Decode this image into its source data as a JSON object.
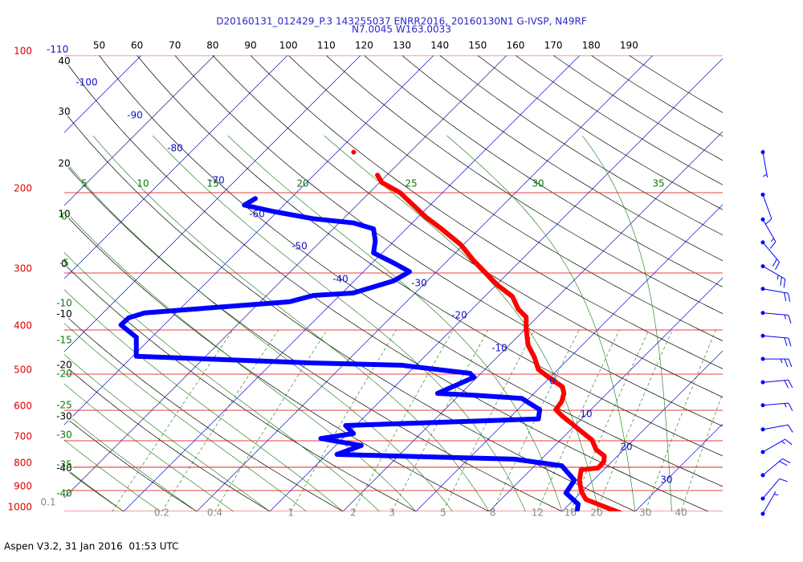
{
  "chart_data": {
    "type": "skewt",
    "title": "D20160131_012429_P.3 143255037 ENRR2016, 20160130N1 G-IVSP, N49RF",
    "subtitle": "N7.0045 W163.0033",
    "footer": "Aspen V3.2, 31 Jan 2016  01:53 UTC",
    "pressure_ticks": [
      100,
      200,
      300,
      400,
      500,
      600,
      700,
      800,
      900,
      1000
    ],
    "isotherms": [
      -110,
      -100,
      -90,
      -80,
      -70,
      -60,
      -50,
      -40,
      -30,
      -20,
      -10,
      0,
      10,
      20,
      30
    ],
    "dry_adiabats": [
      -40,
      -30,
      -20,
      -10,
      0,
      10,
      20,
      30,
      40,
      50,
      60,
      70,
      80,
      90,
      100,
      110,
      120,
      130,
      140,
      150,
      160,
      170,
      180,
      190
    ],
    "moist_adiabats": [
      -40,
      -35,
      -30,
      -25,
      -20,
      -15,
      -10,
      -5,
      0,
      5,
      10,
      15,
      20,
      25,
      30,
      35
    ],
    "mixing_ratios": [
      0.1,
      0.2,
      0.4,
      1,
      2,
      3,
      5,
      8,
      12,
      16,
      20,
      30,
      40
    ],
    "colors": {
      "pressure": "#e00000",
      "isotherm": "#1010c8",
      "dry": "#000000",
      "moist": "#0a7a0a",
      "mixing": "#888888"
    },
    "profiles": [
      {
        "color": "#ff0000",
        "pressure": [
          1016,
          972,
          941,
          904,
          854,
          810,
          803,
          778,
          756,
          732,
          697,
          669,
          642,
          617,
          598,
          574,
          551,
          533,
          508,
          488,
          459,
          432,
          398,
          375,
          360,
          338,
          319,
          300,
          282,
          260,
          240,
          226,
          213,
          200,
          190,
          183
        ],
        "values": [
          29.0,
          24.7,
          21.6,
          19.9,
          18.1,
          16.9,
          19.0,
          18.9,
          18.2,
          16.2,
          14.3,
          11.8,
          9.3,
          6.9,
          5.2,
          4.9,
          4.1,
          3.0,
          -0.2,
          -2.7,
          -4.9,
          -7.4,
          -9.9,
          -11.5,
          -13.7,
          -16.2,
          -19.8,
          -23.1,
          -26.4,
          -30.4,
          -35.2,
          -39.0,
          -42.3,
          -45.8,
          -49.7,
          -51.3
        ]
      },
      {
        "color": "#0000ff",
        "pressure": [
          1016,
          964,
          911,
          854,
          794,
          768,
          750,
          717,
          692,
          675,
          648,
          627,
          598,
          565,
          556,
          551,
          508,
          498,
          478,
          472,
          457,
          415,
          390,
          376,
          367,
          347,
          336,
          332,
          312,
          298,
          285,
          271,
          255,
          240,
          233,
          228,
          220,
          213,
          206
        ],
        "values": [
          22.4,
          21.2,
          18.0,
          17.4,
          13.7,
          6.3,
          -18.6,
          -16.5,
          -23.0,
          -19.2,
          -21.4,
          4.1,
          3.0,
          -1.0,
          -8.0,
          -13.2,
          -10.4,
          -11.5,
          -22.0,
          -35.5,
          -59.5,
          -62.1,
          -65.9,
          -65.8,
          -64.3,
          -46.0,
          -43.6,
          -38.5,
          -34.6,
          -33.7,
          -37.1,
          -41.2,
          -42.6,
          -44.5,
          -48.0,
          -54.2,
          -60.5,
          -65.4,
          -64.8
        ]
      }
    ],
    "points": {
      "color": "#ff0000",
      "pressure": [
        163
      ],
      "values": [
        -57.7
      ]
    },
    "wind": {
      "color": "#0000ff",
      "pressure": [
        163,
        202,
        229,
        257,
        290,
        325,
        367,
        412,
        463,
        521,
        585,
        661,
        741,
        833,
        937,
        1012
      ],
      "speed": [
        5,
        10,
        15,
        20,
        25,
        20,
        15,
        20,
        25,
        20,
        15,
        10,
        15,
        20,
        10,
        5
      ],
      "direction": [
        170,
        160,
        150,
        140,
        120,
        100,
        95,
        95,
        90,
        85,
        85,
        80,
        60,
        50,
        40,
        30
      ]
    }
  }
}
